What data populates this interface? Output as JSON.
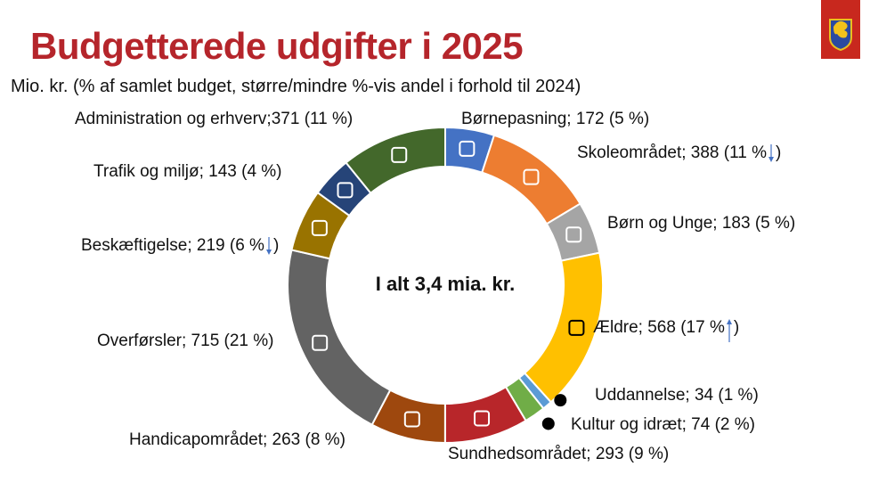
{
  "title": "Budgetterede udgifter i 2025",
  "subtitle": "Mio. kr. (% af samlet budget, større/mindre %-vis andel i forhold til 2024)",
  "center_label": "I alt 3,4 mia. kr.",
  "chart_data": {
    "type": "donut",
    "title": "Budgetterede udgifter i 2025",
    "unit": "Mio. kr.",
    "total_label": "I alt 3,4 mia. kr.",
    "series": [
      {
        "name": "Børnepasning",
        "value": 172,
        "pct": "5 %",
        "color": "#4472C4",
        "icon": "crawling-baby-icon",
        "trend": null,
        "label": "Børnepasning; 172 (5 %)"
      },
      {
        "name": "Skoleområdet",
        "value": 388,
        "pct": "11 %",
        "color": "#ED7D31",
        "icon": "teacher-classroom-icon",
        "trend": "down",
        "label": "Skoleområdet;  388 (11 %"
      },
      {
        "name": "Børn og Unge",
        "value": 183,
        "pct": "5 %",
        "color": "#A5A5A5",
        "icon": "children-group-icon",
        "trend": null,
        "label": "Børn og Unge; 183 (5 %)"
      },
      {
        "name": "Ældre",
        "value": 568,
        "pct": "17 %",
        "color": "#FFC000",
        "icon": "elderly-person-icon",
        "trend": "up",
        "label": "Ældre; 568 (17 %"
      },
      {
        "name": "Uddannelse",
        "value": 34,
        "pct": "1 %",
        "color": "#5B9BD5",
        "icon": "graduation-cap-icon",
        "trend": null,
        "label": "Uddannelse; 34 (1 %)"
      },
      {
        "name": "Kultur og idræt",
        "value": 74,
        "pct": "2 %",
        "color": "#70AD47",
        "icon": "theater-masks-icon",
        "trend": null,
        "label": "Kultur og idræt; 74 (2 %)"
      },
      {
        "name": "Sundhedsområdet",
        "value": 293,
        "pct": "9 %",
        "color": "#B8262A",
        "icon": "medical-cross-icon",
        "trend": null,
        "label": "Sundhedsområdet; 293 (9 %)"
      },
      {
        "name": "Handicapområdet",
        "value": 263,
        "pct": "8 %",
        "color": "#9E480E",
        "icon": "wheelchair-icon",
        "trend": null,
        "label": "Handicapområdet; 263 (8 %)"
      },
      {
        "name": "Overførsler",
        "value": 715,
        "pct": "21 %",
        "color": "#636363",
        "icon": "coins-icon",
        "trend": null,
        "label": "Overførsler; 715 (21 %)"
      },
      {
        "name": "Beskæftigelse",
        "value": 219,
        "pct": "6 %",
        "color": "#997300",
        "icon": "briefcase-icon",
        "trend": "down",
        "label": "Beskæftigelse; 219 (6 %"
      },
      {
        "name": "Trafik og miljø",
        "value": 143,
        "pct": "4 %",
        "color": "#264478",
        "icon": "car-icon",
        "trend": null,
        "label": "Trafik og miljø; 143 (4 %)"
      },
      {
        "name": "Administration og erhverv",
        "value": 371,
        "pct": "11 %",
        "color": "#43682B",
        "icon": "clipboard-icon",
        "trend": null,
        "label": "Administration og erhverv;371 (11 %)"
      }
    ]
  },
  "trend_colors": {
    "arrow": "#4472C4"
  }
}
